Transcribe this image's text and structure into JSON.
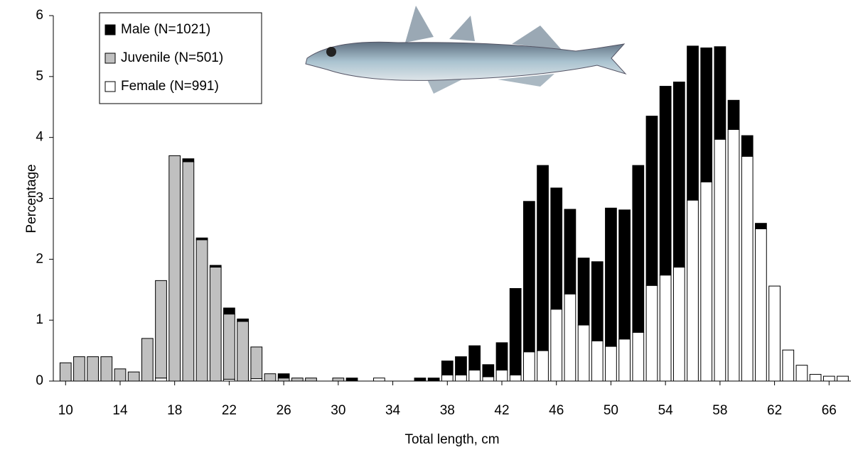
{
  "chart_data": {
    "type": "stacked-bar",
    "xlabel": "Total length, cm",
    "ylabel": "Percentage",
    "x": [
      10,
      11,
      12,
      13,
      14,
      15,
      16,
      17,
      18,
      19,
      20,
      21,
      22,
      23,
      24,
      25,
      26,
      27,
      28,
      29,
      30,
      31,
      32,
      33,
      34,
      35,
      36,
      37,
      38,
      39,
      40,
      41,
      42,
      43,
      44,
      45,
      46,
      47,
      48,
      49,
      50,
      51,
      52,
      53,
      54,
      55,
      56,
      57,
      58,
      59,
      60,
      61,
      62,
      63,
      64,
      65,
      66,
      67
    ],
    "xlim": [
      9.1,
      67.6
    ],
    "xticks": [
      10,
      14,
      18,
      22,
      26,
      30,
      34,
      38,
      42,
      46,
      50,
      54,
      58,
      62,
      66
    ],
    "ylim": [
      0,
      6
    ],
    "yticks": [
      0,
      1,
      2,
      3,
      4,
      5,
      6
    ],
    "legend": "upper left",
    "series": [
      {
        "name": "Male (N=1021)",
        "color": "#000000",
        "values": [
          0,
          0,
          0,
          0,
          0,
          0,
          0,
          0,
          0,
          0.05,
          0.03,
          0.03,
          0.1,
          0.04,
          0,
          0,
          0.07,
          0,
          0,
          0,
          0,
          0.05,
          0,
          0,
          0,
          0,
          0.05,
          0.05,
          0.23,
          0.3,
          0.4,
          0.2,
          0.45,
          1.42,
          2.47,
          3.04,
          1.99,
          1.39,
          1.1,
          1.3,
          2.27,
          2.12,
          2.74,
          2.78,
          3.1,
          3.04,
          2.53,
          2.2,
          1.52,
          0.48,
          0.34,
          0.09,
          0,
          0,
          0,
          0,
          0,
          0
        ]
      },
      {
        "name": "Juvenile (N=501)",
        "color": "#c0c0c0",
        "values": [
          0.3,
          0.4,
          0.4,
          0.4,
          0.2,
          0.15,
          0.7,
          1.6,
          3.7,
          3.6,
          2.32,
          1.87,
          1.07,
          0.98,
          0.52,
          0.12,
          0.05,
          0.05,
          0.05,
          0,
          0.05,
          0,
          0,
          0,
          0,
          0,
          0,
          0,
          0,
          0,
          0,
          0,
          0,
          0,
          0,
          0,
          0,
          0,
          0,
          0,
          0,
          0,
          0,
          0,
          0,
          0,
          0,
          0,
          0,
          0,
          0,
          0,
          0,
          0,
          0,
          0,
          0,
          0
        ]
      },
      {
        "name": "Female (N=991)",
        "color": "#ffffff",
        "values": [
          0,
          0,
          0,
          0,
          0,
          0,
          0,
          0.05,
          0,
          0,
          0,
          0,
          0.03,
          0,
          0.04,
          0,
          0,
          0,
          0,
          0,
          0,
          0,
          0,
          0.05,
          0,
          0,
          0,
          0,
          0.1,
          0.1,
          0.18,
          0.07,
          0.18,
          0.1,
          0.48,
          0.5,
          1.18,
          1.43,
          0.92,
          0.66,
          0.57,
          0.69,
          0.8,
          1.57,
          1.74,
          1.87,
          2.97,
          3.27,
          3.97,
          4.13,
          3.69,
          2.5,
          1.56,
          0.51,
          0.26,
          0.11,
          0.08,
          0.08
        ]
      }
    ]
  }
}
